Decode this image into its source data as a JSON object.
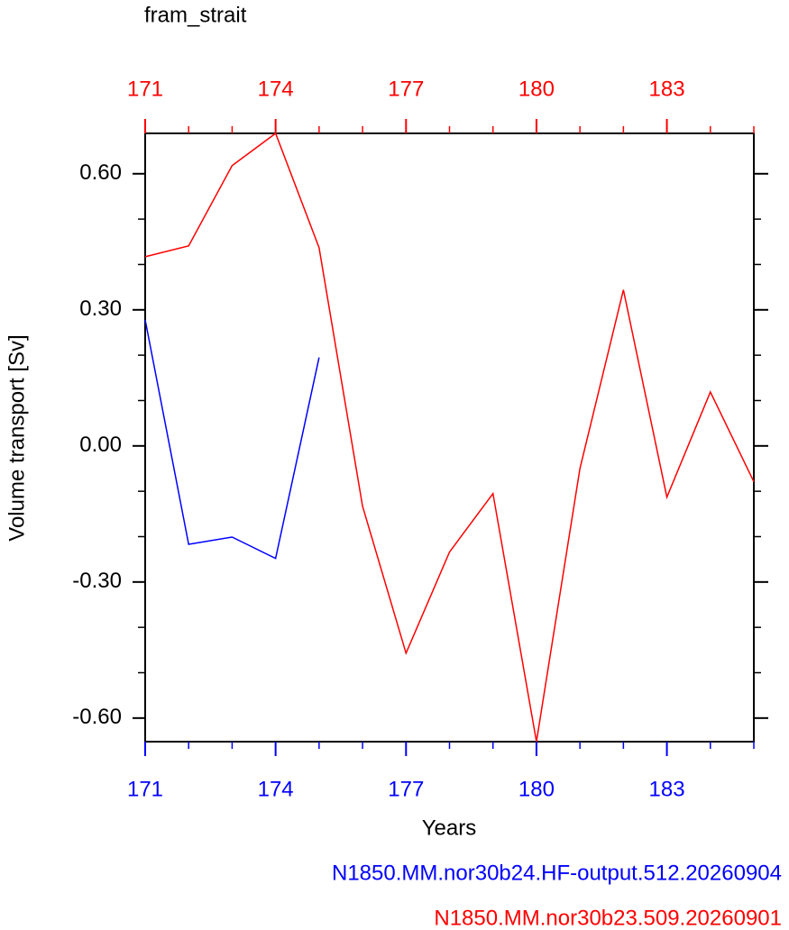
{
  "chart_data": {
    "type": "line",
    "title": "fram_strait",
    "x_label": "Years",
    "y_label": "Volume transport [Sv]",
    "x": [
      171,
      172,
      173,
      174,
      175,
      176,
      177,
      178,
      179,
      180,
      181,
      182,
      183,
      184,
      185
    ],
    "series": [
      {
        "name": "N1850.MM.nor30b24.HF-output.512.20260904",
        "color": "#0000ff",
        "values": [
          0.278,
          -0.217,
          -0.201,
          -0.248,
          0.195,
          null,
          null,
          null,
          null,
          null,
          null,
          null,
          null,
          null,
          null
        ]
      },
      {
        "name": "N1850.MM.nor30b23.509.20260901",
        "color": "#ff0000",
        "values": [
          0.417,
          0.441,
          0.618,
          0.689,
          0.437,
          -0.133,
          -0.457,
          -0.234,
          -0.105,
          -0.652,
          -0.05,
          0.344,
          -0.113,
          0.119,
          -0.079
        ]
      }
    ],
    "xlim": [
      171,
      185
    ],
    "ylim": [
      -0.652,
      0.689
    ],
    "xticks": [
      171,
      174,
      177,
      180,
      183
    ],
    "xminorticks": [
      172,
      173,
      175,
      176,
      178,
      179,
      181,
      182,
      184,
      185
    ],
    "x_tick_color": "#0000ff",
    "x2ticks": [
      171,
      174,
      177,
      180,
      183
    ],
    "x2_tick_color": "#ff0000",
    "yticks": [
      {
        "value": 0.6,
        "label": "0.60"
      },
      {
        "value": 0.3,
        "label": "0.30"
      },
      {
        "value": 0,
        "label": "0.00"
      },
      {
        "value": -0.3,
        "label": "-0.30"
      },
      {
        "value": -0.6,
        "label": "-0.60"
      }
    ],
    "yminorticks": [
      0.5,
      0.4,
      0.2,
      0.1,
      -0.1,
      -0.2,
      -0.4,
      -0.5
    ],
    "grid": false
  }
}
